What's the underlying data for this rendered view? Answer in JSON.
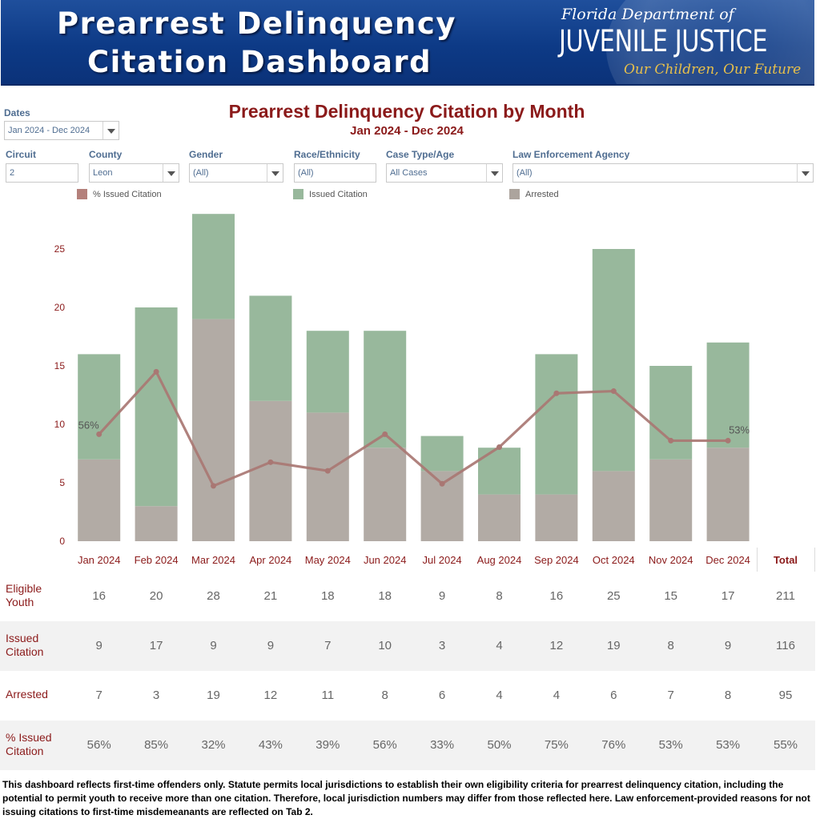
{
  "banner": {
    "title_line1": "Prearrest Delinquency",
    "title_line2": "Citation Dashboard",
    "agency_line1": "Florida Department of",
    "agency_line2": "JUVENILE JUSTICE",
    "agency_tagline": "Our Children, Our Future"
  },
  "filters": {
    "dates": {
      "label": "Dates",
      "value": "Jan 2024 - Dec 2024"
    },
    "circuit": {
      "label": "Circuit",
      "value": "2"
    },
    "county": {
      "label": "County",
      "value": "Leon"
    },
    "gender": {
      "label": "Gender",
      "value": "(All)"
    },
    "race": {
      "label": "Race/Ethnicity",
      "value": "(All)"
    },
    "case_type": {
      "label": "Case Type/Age",
      "value": "All Cases"
    },
    "agency": {
      "label": "Law Enforcement Agency",
      "value": "(All)"
    }
  },
  "colors": {
    "issued": "#98b89c",
    "arrested": "#b2aba5",
    "pct_line": "#a97773",
    "axis_text": "#8b1a1a"
  },
  "chart_data": {
    "type": "bar",
    "title": "Prearrest Delinquency Citation by Month",
    "subtitle": "Jan 2024 - Dec 2024",
    "categories": [
      "Jan 2024",
      "Feb 2024",
      "Mar 2024",
      "Apr 2024",
      "May 2024",
      "Jun 2024",
      "Jul 2024",
      "Aug 2024",
      "Sep 2024",
      "Oct 2024",
      "Nov 2024",
      "Dec 2024"
    ],
    "stacked": true,
    "series": [
      {
        "name": "Arrested",
        "values": [
          7,
          3,
          19,
          12,
          11,
          8,
          6,
          4,
          4,
          6,
          7,
          8
        ]
      },
      {
        "name": "Issued Citation",
        "values": [
          9,
          17,
          9,
          9,
          7,
          10,
          3,
          4,
          12,
          19,
          8,
          9
        ]
      }
    ],
    "line_series": {
      "name": "% Issued Citation",
      "values": [
        56,
        85,
        32,
        43,
        39,
        56,
        33,
        50,
        75,
        76,
        53,
        53
      ]
    },
    "line_labels": {
      "first": "56%",
      "last": "53%"
    },
    "legend": [
      "% Issued Citation",
      "Issued Citation",
      "Arrested"
    ],
    "y_ticks": [
      0,
      5,
      10,
      15,
      20,
      25
    ],
    "ylim": [
      0,
      28
    ],
    "xlabel": "",
    "ylabel": ""
  },
  "table": {
    "total_header": "Total",
    "rows": [
      {
        "label": "Eligible Youth",
        "values": [
          "16",
          "20",
          "28",
          "21",
          "18",
          "18",
          "9",
          "8",
          "16",
          "25",
          "15",
          "17"
        ],
        "total": "211"
      },
      {
        "label": "Issued Citation",
        "values": [
          "9",
          "17",
          "9",
          "9",
          "7",
          "10",
          "3",
          "4",
          "12",
          "19",
          "8",
          "9"
        ],
        "total": "116"
      },
      {
        "label": "Arrested",
        "values": [
          "7",
          "3",
          "19",
          "12",
          "11",
          "8",
          "6",
          "4",
          "4",
          "6",
          "7",
          "8"
        ],
        "total": "95"
      },
      {
        "label": "% Issued Citation",
        "values": [
          "56%",
          "85%",
          "32%",
          "43%",
          "39%",
          "56%",
          "33%",
          "50%",
          "75%",
          "76%",
          "53%",
          "53%"
        ],
        "total": "55%"
      }
    ]
  },
  "footnote": "This dashboard reflects first-time offenders only.  Statute permits local jurisdictions to establish their own eligibility criteria for prearrest delinquency citation, including the potential to permit youth to receive more than one citation.  Therefore, local jurisdiction numbers may differ from those reflected here. Law enforcement-provided reasons for not issuing citations to first-time misdemeanants are reflected on Tab 2."
}
